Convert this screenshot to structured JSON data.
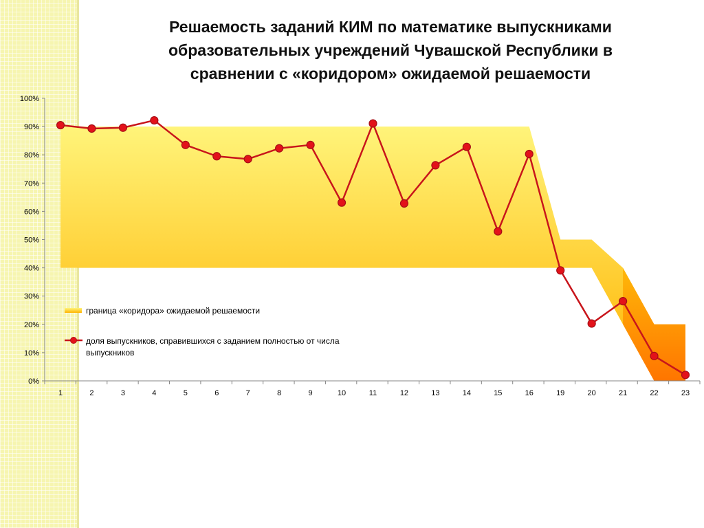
{
  "title_lines": [
    "Решаемость заданий КИМ по математике выпускниками",
    "образовательных учреждений Чувашской Республики  в",
    "сравнении с «коридором» ожидаемой решаемости"
  ],
  "colors": {
    "line": "#c8151b",
    "marker_fill": "#e3121a",
    "corridor_top": "#fff47a",
    "corridor_bottom": "#ffb300",
    "corridor_end": "#ff6a00"
  },
  "chart_data": {
    "type": "line",
    "title": "Решаемость заданий КИМ по математике выпускниками образовательных учреждений Чувашской Республики  в сравнении с «коридором» ожидаемой решаемости",
    "categories": [
      "1",
      "2",
      "3",
      "4",
      "5",
      "6",
      "7",
      "8",
      "9",
      "10",
      "11",
      "12",
      "13",
      "14",
      "15",
      "16",
      "19",
      "20",
      "21",
      "22",
      "23"
    ],
    "y_ticks": [
      "0%",
      "10%",
      "20%",
      "30%",
      "40%",
      "50%",
      "60%",
      "70%",
      "80%",
      "90%",
      "100%"
    ],
    "ylim": [
      0,
      100
    ],
    "grid": false,
    "legend_position": "inside-left",
    "series": [
      {
        "name": "граница «коридора» ожидаемой решаемости",
        "type": "area-band",
        "lower": [
          40,
          40,
          40,
          40,
          40,
          40,
          40,
          40,
          40,
          40,
          40,
          40,
          40,
          40,
          40,
          40,
          40,
          40,
          20,
          0,
          0
        ],
        "upper": [
          90,
          90,
          90,
          90,
          90,
          90,
          90,
          90,
          90,
          90,
          90,
          90,
          90,
          90,
          90,
          90,
          50,
          50,
          40,
          20,
          20
        ]
      },
      {
        "name": "доля выпускников, справившихся с заданием полностью от  числа выпускников",
        "type": "line",
        "values": [
          90.5,
          89.3,
          89.6,
          92.2,
          83.5,
          79.5,
          78.5,
          82.3,
          83.5,
          63.1,
          91.1,
          62.8,
          76.3,
          82.8,
          52.9,
          80.3,
          39.1,
          20.3,
          28.2,
          8.8,
          2.1
        ]
      }
    ],
    "legend": [
      "граница «коридора» ожидаемой решаемости",
      "доля выпускников, справившихся с заданием полностью от  числа выпускников"
    ]
  }
}
